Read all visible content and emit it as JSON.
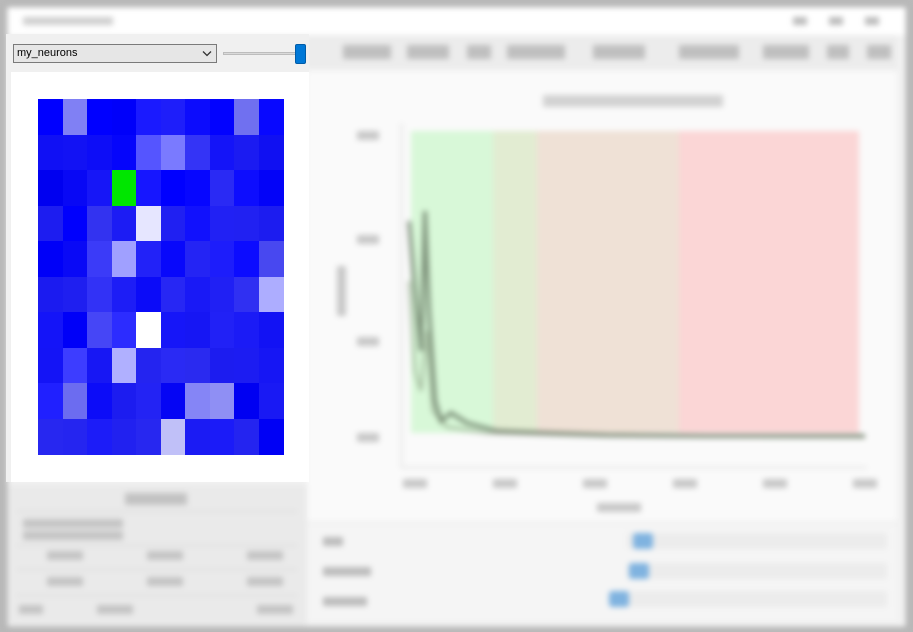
{
  "panel": {
    "dataset_select": {
      "value": "my_neurons"
    },
    "slider": {
      "value_fraction": 0.96
    },
    "icons": {
      "dropdown": "chevron-down-icon"
    }
  },
  "heatmap": {
    "rows": 10,
    "cols": 10,
    "colors": [
      [
        "#0000ff",
        "#8080f4",
        "#0000ff",
        "#0000fa",
        "#1a1aff",
        "#1e1efa",
        "#0c0cfd",
        "#0202ff",
        "#7070f0",
        "#0808ff"
      ],
      [
        "#1010f4",
        "#1212f4",
        "#0d0df7",
        "#0505fb",
        "#5555ff",
        "#7a7aff",
        "#3434f6",
        "#1414f8",
        "#1b1bf2",
        "#1010f2"
      ],
      [
        "#0000f0",
        "#0808f5",
        "#1616f7",
        "#00e600",
        "#1616ff",
        "#0000ff",
        "#0606ff",
        "#2a2af4",
        "#0d0dfe",
        "#0303f8"
      ],
      [
        "#1d1df0",
        "#0000fd",
        "#3333f0",
        "#1c1cf4",
        "#e6e6ff",
        "#2020f2",
        "#1111fd",
        "#2121f4",
        "#2121f2",
        "#1c1cf0"
      ],
      [
        "#0000f8",
        "#0909f6",
        "#3b3bf8",
        "#a0a0ff",
        "#2222f8",
        "#0808fb",
        "#2424f4",
        "#1d1dfb",
        "#0c0cff",
        "#4848f0"
      ],
      [
        "#1b1bf0",
        "#1f1ff0",
        "#3232f6",
        "#1d1df6",
        "#0b0bf8",
        "#2727f4",
        "#1919f6",
        "#2020f4",
        "#3030f2",
        "#adadff"
      ],
      [
        "#1414f8",
        "#0000f8",
        "#4646f6",
        "#2c2cff",
        "#ffffff",
        "#1616f8",
        "#1616f4",
        "#2121f6",
        "#1b1bf6",
        "#1212f4"
      ],
      [
        "#1414f6",
        "#3d3dff",
        "#1717f4",
        "#b0b0ff",
        "#2424f0",
        "#2a2af4",
        "#2a2af0",
        "#1c1cf0",
        "#1c1cf2",
        "#1616f4"
      ],
      [
        "#2020ff",
        "#6c6cf0",
        "#0c0cf8",
        "#1c1cf0",
        "#2323f4",
        "#0505f4",
        "#8585f6",
        "#8f8ff4",
        "#0000f2",
        "#1919f4"
      ],
      [
        "#2727f0",
        "#2525f0",
        "#1c1cf8",
        "#2121f0",
        "#2727f0",
        "#c0c0f8",
        "#1b1bf4",
        "#1b1bf8",
        "#2424f0",
        "#0000f5"
      ]
    ]
  }
}
